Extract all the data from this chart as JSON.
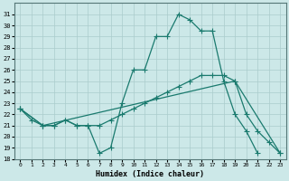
{
  "bg_color": "#cce8e8",
  "grid_color": "#aacccc",
  "line_color": "#1a7a6e",
  "xlabel": "Humidex (Indice chaleur)",
  "xlim": [
    -0.5,
    23.5
  ],
  "ylim": [
    18,
    32
  ],
  "yticks": [
    18,
    19,
    20,
    21,
    22,
    23,
    24,
    25,
    26,
    27,
    28,
    29,
    30,
    31
  ],
  "xticks": [
    0,
    1,
    2,
    3,
    4,
    5,
    6,
    7,
    8,
    9,
    10,
    11,
    12,
    13,
    14,
    15,
    16,
    17,
    18,
    19,
    20,
    21,
    22,
    23
  ],
  "line1_x": [
    0,
    1,
    2,
    3,
    4,
    5,
    6,
    7,
    8,
    9,
    10,
    11,
    12,
    13,
    14,
    15,
    16,
    17,
    18,
    19,
    20,
    21
  ],
  "line1_y": [
    22.5,
    21.5,
    21.0,
    21.0,
    21.5,
    21.0,
    21.0,
    18.5,
    19.0,
    23.0,
    26.0,
    26.0,
    29.0,
    29.0,
    31.0,
    30.5,
    29.5,
    29.5,
    25.0,
    22.0,
    20.5,
    18.5
  ],
  "line2_x": [
    0,
    2,
    3,
    4,
    5,
    6,
    7,
    8,
    9,
    10,
    11,
    12,
    13,
    14,
    15,
    16,
    17,
    18,
    19,
    20,
    21,
    22,
    23
  ],
  "line2_y": [
    22.5,
    21.0,
    21.0,
    21.5,
    21.0,
    21.0,
    21.0,
    21.5,
    22.0,
    22.5,
    23.0,
    23.5,
    24.0,
    24.5,
    25.0,
    25.5,
    25.5,
    25.5,
    25.0,
    22.0,
    20.5,
    19.5,
    18.5
  ],
  "line3_x": [
    0,
    2,
    19,
    23
  ],
  "line3_y": [
    22.5,
    21.0,
    25.0,
    18.5
  ],
  "marker_size": 4
}
